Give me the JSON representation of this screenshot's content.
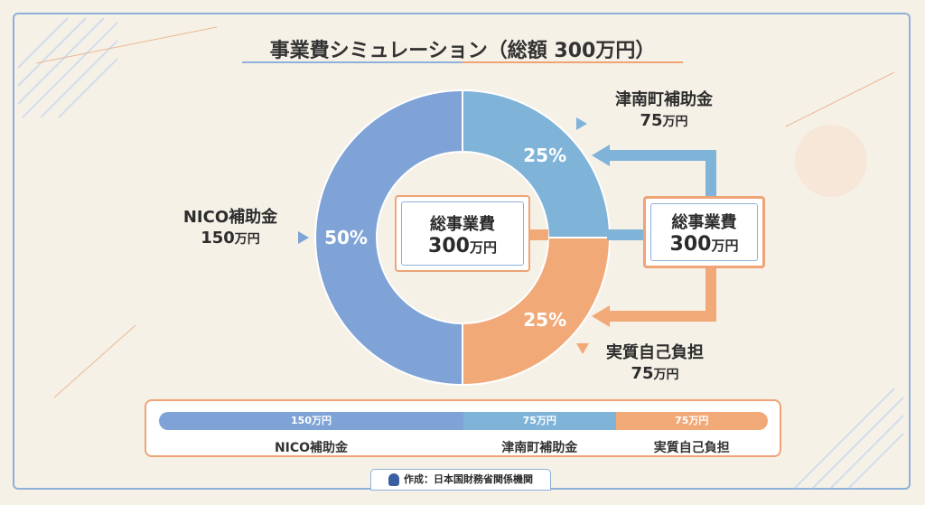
{
  "title": "事業費シミュレーション（総額 300万円）",
  "center": {
    "line1": "総事業費",
    "line2_value": "300",
    "line2_unit": "万円"
  },
  "right_box": {
    "line1": "総事業費",
    "line2_value": "300",
    "line2_unit": "万円"
  },
  "labels": {
    "nico": {
      "name": "NICO補助金",
      "amount": "150",
      "unit": "万円"
    },
    "town": {
      "name": "津南町補助金",
      "amount": "75",
      "unit": "万円"
    },
    "self": {
      "name": "実質自己負担",
      "amount": "75",
      "unit": "万円"
    }
  },
  "footer": "作成：日本国財務省関係機関",
  "colors": {
    "nico": "#7fa3d6",
    "town": "#7fb3d8",
    "self": "#f2a978",
    "accent_orange": "#efa376",
    "accent_blue": "#8fb0da"
  },
  "chart_data": {
    "type": "pie",
    "title": "事業費シミュレーション（総額 300万円）",
    "categories": [
      "NICO補助金",
      "津南町補助金",
      "実質自己負担"
    ],
    "values": [
      150,
      75,
      75
    ],
    "percent_labels": [
      "50%",
      "25%",
      "25%"
    ],
    "bar": {
      "value_labels": [
        "150万円",
        "75万円",
        "75万円"
      ],
      "category_labels": [
        "NICO補助金",
        "津南町補助金",
        "実質自己負担"
      ]
    }
  }
}
